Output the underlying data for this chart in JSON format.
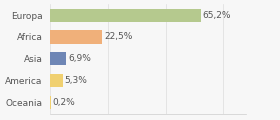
{
  "categories": [
    "Europa",
    "Africa",
    "Asia",
    "America",
    "Oceania"
  ],
  "values": [
    65.2,
    22.5,
    6.9,
    5.3,
    0.2
  ],
  "labels": [
    "65,2%",
    "22,5%",
    "6,9%",
    "5,3%",
    "0,2%"
  ],
  "bar_colors": [
    "#b5c98e",
    "#f0b07a",
    "#6e86b5",
    "#f0d070",
    "#f0d070"
  ],
  "background_color": "#f7f7f7",
  "label_fontsize": 6.5,
  "tick_fontsize": 6.5,
  "xlim": [
    0,
    85
  ],
  "grid_ticks": [
    0,
    25,
    50,
    75
  ],
  "grid_color": "#dddddd"
}
